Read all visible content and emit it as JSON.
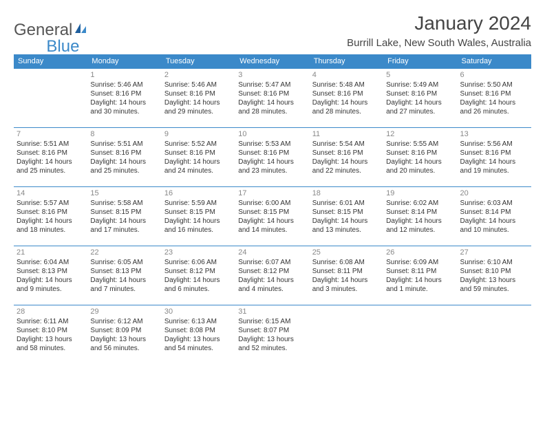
{
  "logo": {
    "text_general": "General",
    "text_blue": "Blue"
  },
  "title": "January 2024",
  "location": "Burrill Lake, New South Wales, Australia",
  "colors": {
    "header_bg": "#3b89c9",
    "header_text": "#ffffff",
    "border": "#3b89c9",
    "daynum": "#888888",
    "body_text": "#333333"
  },
  "weekdays": [
    "Sunday",
    "Monday",
    "Tuesday",
    "Wednesday",
    "Thursday",
    "Friday",
    "Saturday"
  ],
  "weeks": [
    [
      {
        "day": "",
        "sunrise": "",
        "sunset": "",
        "daylight": ""
      },
      {
        "day": "1",
        "sunrise": "Sunrise: 5:46 AM",
        "sunset": "Sunset: 8:16 PM",
        "daylight": "Daylight: 14 hours and 30 minutes."
      },
      {
        "day": "2",
        "sunrise": "Sunrise: 5:46 AM",
        "sunset": "Sunset: 8:16 PM",
        "daylight": "Daylight: 14 hours and 29 minutes."
      },
      {
        "day": "3",
        "sunrise": "Sunrise: 5:47 AM",
        "sunset": "Sunset: 8:16 PM",
        "daylight": "Daylight: 14 hours and 28 minutes."
      },
      {
        "day": "4",
        "sunrise": "Sunrise: 5:48 AM",
        "sunset": "Sunset: 8:16 PM",
        "daylight": "Daylight: 14 hours and 28 minutes."
      },
      {
        "day": "5",
        "sunrise": "Sunrise: 5:49 AM",
        "sunset": "Sunset: 8:16 PM",
        "daylight": "Daylight: 14 hours and 27 minutes."
      },
      {
        "day": "6",
        "sunrise": "Sunrise: 5:50 AM",
        "sunset": "Sunset: 8:16 PM",
        "daylight": "Daylight: 14 hours and 26 minutes."
      }
    ],
    [
      {
        "day": "7",
        "sunrise": "Sunrise: 5:51 AM",
        "sunset": "Sunset: 8:16 PM",
        "daylight": "Daylight: 14 hours and 25 minutes."
      },
      {
        "day": "8",
        "sunrise": "Sunrise: 5:51 AM",
        "sunset": "Sunset: 8:16 PM",
        "daylight": "Daylight: 14 hours and 25 minutes."
      },
      {
        "day": "9",
        "sunrise": "Sunrise: 5:52 AM",
        "sunset": "Sunset: 8:16 PM",
        "daylight": "Daylight: 14 hours and 24 minutes."
      },
      {
        "day": "10",
        "sunrise": "Sunrise: 5:53 AM",
        "sunset": "Sunset: 8:16 PM",
        "daylight": "Daylight: 14 hours and 23 minutes."
      },
      {
        "day": "11",
        "sunrise": "Sunrise: 5:54 AM",
        "sunset": "Sunset: 8:16 PM",
        "daylight": "Daylight: 14 hours and 22 minutes."
      },
      {
        "day": "12",
        "sunrise": "Sunrise: 5:55 AM",
        "sunset": "Sunset: 8:16 PM",
        "daylight": "Daylight: 14 hours and 20 minutes."
      },
      {
        "day": "13",
        "sunrise": "Sunrise: 5:56 AM",
        "sunset": "Sunset: 8:16 PM",
        "daylight": "Daylight: 14 hours and 19 minutes."
      }
    ],
    [
      {
        "day": "14",
        "sunrise": "Sunrise: 5:57 AM",
        "sunset": "Sunset: 8:16 PM",
        "daylight": "Daylight: 14 hours and 18 minutes."
      },
      {
        "day": "15",
        "sunrise": "Sunrise: 5:58 AM",
        "sunset": "Sunset: 8:15 PM",
        "daylight": "Daylight: 14 hours and 17 minutes."
      },
      {
        "day": "16",
        "sunrise": "Sunrise: 5:59 AM",
        "sunset": "Sunset: 8:15 PM",
        "daylight": "Daylight: 14 hours and 16 minutes."
      },
      {
        "day": "17",
        "sunrise": "Sunrise: 6:00 AM",
        "sunset": "Sunset: 8:15 PM",
        "daylight": "Daylight: 14 hours and 14 minutes."
      },
      {
        "day": "18",
        "sunrise": "Sunrise: 6:01 AM",
        "sunset": "Sunset: 8:15 PM",
        "daylight": "Daylight: 14 hours and 13 minutes."
      },
      {
        "day": "19",
        "sunrise": "Sunrise: 6:02 AM",
        "sunset": "Sunset: 8:14 PM",
        "daylight": "Daylight: 14 hours and 12 minutes."
      },
      {
        "day": "20",
        "sunrise": "Sunrise: 6:03 AM",
        "sunset": "Sunset: 8:14 PM",
        "daylight": "Daylight: 14 hours and 10 minutes."
      }
    ],
    [
      {
        "day": "21",
        "sunrise": "Sunrise: 6:04 AM",
        "sunset": "Sunset: 8:13 PM",
        "daylight": "Daylight: 14 hours and 9 minutes."
      },
      {
        "day": "22",
        "sunrise": "Sunrise: 6:05 AM",
        "sunset": "Sunset: 8:13 PM",
        "daylight": "Daylight: 14 hours and 7 minutes."
      },
      {
        "day": "23",
        "sunrise": "Sunrise: 6:06 AM",
        "sunset": "Sunset: 8:12 PM",
        "daylight": "Daylight: 14 hours and 6 minutes."
      },
      {
        "day": "24",
        "sunrise": "Sunrise: 6:07 AM",
        "sunset": "Sunset: 8:12 PM",
        "daylight": "Daylight: 14 hours and 4 minutes."
      },
      {
        "day": "25",
        "sunrise": "Sunrise: 6:08 AM",
        "sunset": "Sunset: 8:11 PM",
        "daylight": "Daylight: 14 hours and 3 minutes."
      },
      {
        "day": "26",
        "sunrise": "Sunrise: 6:09 AM",
        "sunset": "Sunset: 8:11 PM",
        "daylight": "Daylight: 14 hours and 1 minute."
      },
      {
        "day": "27",
        "sunrise": "Sunrise: 6:10 AM",
        "sunset": "Sunset: 8:10 PM",
        "daylight": "Daylight: 13 hours and 59 minutes."
      }
    ],
    [
      {
        "day": "28",
        "sunrise": "Sunrise: 6:11 AM",
        "sunset": "Sunset: 8:10 PM",
        "daylight": "Daylight: 13 hours and 58 minutes."
      },
      {
        "day": "29",
        "sunrise": "Sunrise: 6:12 AM",
        "sunset": "Sunset: 8:09 PM",
        "daylight": "Daylight: 13 hours and 56 minutes."
      },
      {
        "day": "30",
        "sunrise": "Sunrise: 6:13 AM",
        "sunset": "Sunset: 8:08 PM",
        "daylight": "Daylight: 13 hours and 54 minutes."
      },
      {
        "day": "31",
        "sunrise": "Sunrise: 6:15 AM",
        "sunset": "Sunset: 8:07 PM",
        "daylight": "Daylight: 13 hours and 52 minutes."
      },
      {
        "day": "",
        "sunrise": "",
        "sunset": "",
        "daylight": ""
      },
      {
        "day": "",
        "sunrise": "",
        "sunset": "",
        "daylight": ""
      },
      {
        "day": "",
        "sunrise": "",
        "sunset": "",
        "daylight": ""
      }
    ]
  ]
}
